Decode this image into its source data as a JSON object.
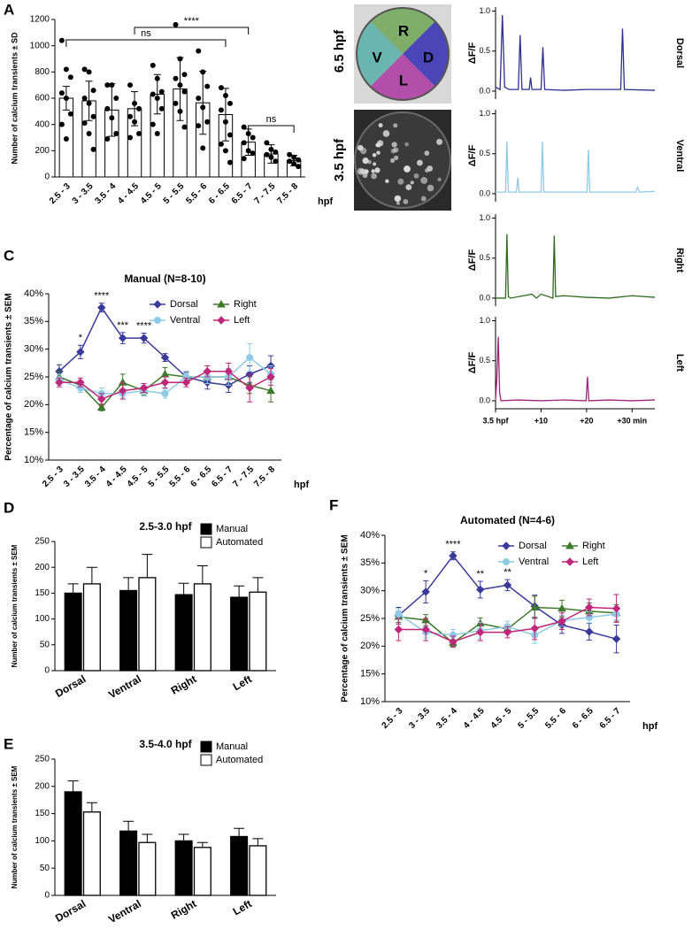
{
  "panel_labels": [
    "A",
    "C",
    "D",
    "E",
    "F"
  ],
  "images": {
    "top_label": "6.5 hpf",
    "bottom_label": "3.5 hpf",
    "quadrants": [
      "R",
      "V",
      "D",
      "L"
    ]
  },
  "chart_data": [
    {
      "type": "bar",
      "ylabel": "Number of calcium transients ± SD",
      "xlabel": "hpf",
      "categories": [
        "2.5 - 3",
        "3 - 3.5",
        "3.5 - 4",
        "4 - 4.5",
        "4.5 - 5",
        "5 - 5.5",
        "5.5 - 6",
        "6 - 6.5",
        "6.5 - 7",
        "7 - 7.5",
        "7.5 - 8"
      ],
      "values": [
        600,
        580,
        510,
        520,
        630,
        670,
        565,
        475,
        265,
        175,
        125
      ],
      "errors": [
        90,
        150,
        200,
        130,
        150,
        240,
        240,
        200,
        100,
        70,
        40
      ],
      "points": [
        [
          1040,
          820,
          760,
          640,
          600,
          480,
          400,
          290
        ],
        [
          820,
          800,
          660,
          600,
          560,
          460,
          410,
          330,
          210
        ],
        [
          700,
          700,
          600,
          520,
          450,
          330,
          290
        ],
        [
          700,
          560,
          520,
          460,
          420,
          330,
          300
        ],
        [
          850,
          750,
          650,
          630,
          600,
          520,
          400,
          330
        ],
        [
          1160,
          900,
          780,
          750,
          700,
          650,
          560,
          500,
          380
        ],
        [
          960,
          800,
          690,
          600,
          530,
          420,
          390,
          220
        ],
        [
          680,
          620,
          560,
          510,
          420,
          320,
          250,
          200,
          110
        ],
        [
          380,
          330,
          300,
          260,
          200,
          180,
          140
        ],
        [
          260,
          210,
          190,
          170,
          150,
          120
        ],
        [
          170,
          150,
          130,
          120,
          100,
          80
        ]
      ],
      "color": "#ffffff",
      "point_color": "#000000",
      "ylim": [
        0,
        1200
      ],
      "yticks": [
        0,
        200,
        400,
        600,
        800,
        1000,
        1200
      ],
      "brackets": [
        {
          "text": "ns",
          "from": "2.5 - 3",
          "to": "6 - 6.5"
        },
        {
          "text": "****",
          "from": "4 - 4.5",
          "to": "6.5 - 7"
        },
        {
          "text": "ns",
          "from": "6.5 - 7",
          "to": "7.5 - 8"
        }
      ]
    },
    {
      "type": "line",
      "label": "Dorsal",
      "ylabel": "ΔF/F",
      "color": "#2e2f8f",
      "x": [
        0,
        1,
        1.5,
        2,
        3,
        5,
        5.4,
        5.8,
        7.4,
        7.7,
        8,
        10,
        10.4,
        10.8,
        15,
        20,
        27.5,
        27.9,
        28.3,
        35
      ],
      "values": [
        0.05,
        0.02,
        0.95,
        0.05,
        0.02,
        0.02,
        0.7,
        0.02,
        0.02,
        0.17,
        0.02,
        0.02,
        0.55,
        0.02,
        0.01,
        0.02,
        0.02,
        0.78,
        0.02,
        0.01
      ],
      "xlim": [
        0,
        35
      ],
      "ylim": [
        -0.1,
        1.05
      ],
      "yticks": [
        {
          "value": 0,
          "label": "0.0"
        },
        {
          "value": 0.5,
          "label": "0.5"
        },
        {
          "value": 1,
          "label": "1.0"
        }
      ]
    },
    {
      "type": "line",
      "label": "Ventral",
      "ylabel": "ΔF/F",
      "color": "#8ecae6",
      "x": [
        0,
        2.2,
        2.5,
        2.8,
        4.6,
        4.9,
        5.2,
        10,
        10.3,
        10.6,
        20.1,
        20.4,
        20.7,
        30.8,
        31.2,
        31.6,
        35
      ],
      "values": [
        0.02,
        0.02,
        0.65,
        0.02,
        0.02,
        0.2,
        0.02,
        0.02,
        0.65,
        0.02,
        0.02,
        0.55,
        0.02,
        0.02,
        0.08,
        0.02,
        0.03
      ],
      "xlim": [
        0,
        35
      ],
      "ylim": [
        -0.1,
        1.05
      ],
      "yticks": [
        {
          "value": 0,
          "label": "0.0"
        },
        {
          "value": 0.5,
          "label": "0.5"
        },
        {
          "value": 1,
          "label": "1.0"
        }
      ]
    },
    {
      "type": "line",
      "label": "Right",
      "ylabel": "ΔF/F",
      "color": "#2e6b1f",
      "x": [
        0,
        2.2,
        2.5,
        2.8,
        3.3,
        8,
        9,
        10,
        12.6,
        12.9,
        13.2,
        15,
        20,
        25,
        30,
        35
      ],
      "values": [
        0,
        0,
        0.8,
        0.02,
        0,
        0.05,
        0,
        0.05,
        0,
        0.78,
        0.02,
        0.03,
        0.01,
        0,
        0.03,
        0.01
      ],
      "xlim": [
        0,
        35
      ],
      "ylim": [
        -0.1,
        1.05
      ],
      "yticks": [
        {
          "value": 0,
          "label": "0.0"
        },
        {
          "value": 0.5,
          "label": "0.5"
        },
        {
          "value": 1,
          "label": "1.0"
        }
      ]
    },
    {
      "type": "line",
      "label": "Left",
      "ylabel": "ΔF/F",
      "color": "#a0267a",
      "x": [
        0,
        0.3,
        0.6,
        0.9,
        1.2,
        5,
        10,
        15,
        19.9,
        20.2,
        20.5,
        25,
        30,
        35
      ],
      "values": [
        0,
        0.3,
        0.8,
        0.1,
        0,
        0.01,
        0,
        0.01,
        0,
        0.3,
        0,
        0.01,
        0,
        0.01
      ],
      "xlim": [
        0,
        35
      ],
      "ylim": [
        -0.1,
        1.05
      ],
      "yticks": [
        {
          "value": 0,
          "label": "0.0"
        },
        {
          "value": 0.5,
          "label": "0.5"
        },
        {
          "value": 1,
          "label": "1.0"
        }
      ],
      "xticks": [
        {
          "value": 0,
          "label": "3.5 hpf"
        },
        {
          "value": 10,
          "label": "+10"
        },
        {
          "value": 20,
          "label": "+20"
        },
        {
          "value": 30,
          "label": "+30 min"
        }
      ]
    },
    {
      "type": "line",
      "title": "Manual (N=8-10)",
      "ylabel": "Percentage of calcium transients ± SEM",
      "xlabel": "hpf",
      "categories": [
        "2.5 - 3",
        "3 - 3.5",
        "3.5 - 4",
        "4 - 4.5",
        "4.5 - 5",
        "5 - 5.5",
        "5.5 - 6",
        "6 - 6.5",
        "6.5 - 7",
        "7 - 7.5",
        "7.5 - 8"
      ],
      "series": [
        {
          "name": "Dorsal",
          "color": "#3b3a9c",
          "marker": "diamond",
          "values": [
            26,
            29.5,
            37.5,
            32,
            32,
            28.5,
            25,
            24,
            23.5,
            25.5,
            27
          ],
          "errors": [
            1.2,
            1.2,
            0.8,
            1,
            0.9,
            0.7,
            0.8,
            1.2,
            1.3,
            1.5,
            1.8
          ]
        },
        {
          "name": "Right",
          "color": "#3d7a2a",
          "marker": "triangle",
          "values": [
            25,
            23.5,
            19.5,
            24,
            22.5,
            25.5,
            25,
            25,
            25,
            23.5,
            22.5
          ],
          "errors": [
            1,
            0.8,
            0.6,
            1.5,
            0.8,
            1.2,
            1,
            1.2,
            1.5,
            1.5,
            2
          ]
        },
        {
          "name": "Ventral",
          "color": "#8ecae6",
          "marker": "circle",
          "values": [
            24.5,
            23,
            22,
            22,
            22.5,
            22,
            25,
            25,
            25,
            28.5,
            25.5
          ],
          "errors": [
            1,
            0.8,
            1,
            0.8,
            1,
            0.8,
            1,
            1.2,
            1.5,
            2.5,
            1.5
          ]
        },
        {
          "name": "Left",
          "color": "#c0267a",
          "marker": "diamond",
          "values": [
            24,
            24,
            21,
            22.5,
            23,
            24,
            24,
            26,
            26,
            23,
            25
          ],
          "errors": [
            0.8,
            0.8,
            1,
            1.5,
            0.8,
            1,
            0.8,
            1,
            1.5,
            2.5,
            1.5
          ]
        }
      ],
      "ylim": [
        10,
        40
      ],
      "yticks": [
        {
          "value": 10,
          "label": "10%"
        },
        {
          "value": 15,
          "label": "15%"
        },
        {
          "value": 20,
          "label": "20%"
        },
        {
          "value": 25,
          "label": "25%"
        },
        {
          "value": 30,
          "label": "30%"
        },
        {
          "value": 35,
          "label": "35%"
        },
        {
          "value": 40,
          "label": "40%"
        }
      ],
      "legend": "upper right",
      "annotations": [
        {
          "text": "*",
          "category": "3 - 3.5"
        },
        {
          "text": "****",
          "category": "3.5 - 4"
        },
        {
          "text": "***",
          "category": "4 - 4.5"
        },
        {
          "text": "****",
          "category": "4.5 - 5"
        }
      ]
    },
    {
      "type": "grouped_bar",
      "title": "2.5-3.0 hpf",
      "ylabel": "Number of calcium transients ± SEM",
      "categories": [
        "Dorsal",
        "Ventral",
        "Right",
        "Left"
      ],
      "series": [
        {
          "name": "Manual",
          "color": "#000000",
          "values": [
            150,
            155,
            147,
            142
          ],
          "errors": [
            18,
            25,
            22,
            22
          ]
        },
        {
          "name": "Automated",
          "color": "#ffffff",
          "values": [
            168,
            180,
            168,
            152
          ],
          "errors": [
            32,
            45,
            35,
            28
          ]
        }
      ],
      "ylim": [
        0,
        250
      ],
      "yticks": [
        0,
        50,
        100,
        150,
        200,
        250
      ],
      "legend": "upper right"
    },
    {
      "type": "grouped_bar",
      "title": "3.5-4.0 hpf",
      "ylabel": "Number of calcium transients ± SEM",
      "categories": [
        "Dorsal",
        "Ventral",
        "Right",
        "Left"
      ],
      "series": [
        {
          "name": "Manual",
          "color": "#000000",
          "values": [
            190,
            118,
            100,
            108
          ],
          "errors": [
            20,
            18,
            12,
            15
          ]
        },
        {
          "name": "Automated",
          "color": "#ffffff",
          "values": [
            153,
            97,
            88,
            91
          ],
          "errors": [
            17,
            15,
            9,
            13
          ]
        }
      ],
      "ylim": [
        0,
        250
      ],
      "yticks": [
        0,
        50,
        100,
        150,
        200,
        250
      ],
      "legend": "upper right"
    },
    {
      "type": "line",
      "title": "Automated (N=4-6)",
      "ylabel": "Percentage of calcium transients ± SEM",
      "xlabel": "hpf",
      "categories": [
        "2.5 - 3",
        "3 - 3.5",
        "3.5 - 4",
        "4 - 4.5",
        "4.5 - 5",
        "5 - 5.5",
        "5.5 - 6",
        "6 - 6.5",
        "6.5 - 7"
      ],
      "series": [
        {
          "name": "Dorsal",
          "color": "#3b3a9c",
          "marker": "diamond",
          "values": [
            25.5,
            29.8,
            36.3,
            30.2,
            31,
            27.2,
            23.8,
            22.6,
            21.3
          ],
          "errors": [
            1.5,
            2,
            0.7,
            1.5,
            1,
            2,
            1.5,
            1.5,
            2.5
          ]
        },
        {
          "name": "Right",
          "color": "#3d7a2a",
          "marker": "triangle",
          "values": [
            25.3,
            24.7,
            20.6,
            24.1,
            23.1,
            27,
            26.8,
            26.3,
            26
          ],
          "errors": [
            1,
            1,
            0.6,
            1,
            0.8,
            2,
            1.5,
            1.5,
            1.5
          ]
        },
        {
          "name": "Ventral",
          "color": "#8ecae6",
          "marker": "circle",
          "values": [
            25.8,
            22.5,
            22,
            22.8,
            23.5,
            22,
            24.6,
            25.2,
            25.8
          ],
          "errors": [
            1,
            1,
            1,
            1.5,
            1,
            1.5,
            1,
            1,
            1
          ]
        },
        {
          "name": "Left",
          "color": "#c0267a",
          "marker": "diamond",
          "values": [
            23,
            23,
            20.8,
            22.5,
            22.5,
            23.2,
            24.5,
            27,
            26.8
          ],
          "errors": [
            2,
            2,
            1,
            1.5,
            1,
            2,
            1.5,
            1.5,
            2.5
          ]
        }
      ],
      "ylim": [
        10,
        40
      ],
      "yticks": [
        {
          "value": 10,
          "label": "10%"
        },
        {
          "value": 15,
          "label": "15%"
        },
        {
          "value": 20,
          "label": "20%"
        },
        {
          "value": 25,
          "label": "25%"
        },
        {
          "value": 30,
          "label": "30%"
        },
        {
          "value": 35,
          "label": "35%"
        },
        {
          "value": 40,
          "label": "40%"
        }
      ],
      "legend": "upper right",
      "annotations": [
        {
          "text": "*",
          "category": "3 - 3.5"
        },
        {
          "text": "****",
          "category": "3.5 - 4"
        },
        {
          "text": "**",
          "category": "4 - 4.5"
        },
        {
          "text": "**",
          "category": "4.5 - 5"
        }
      ]
    }
  ]
}
